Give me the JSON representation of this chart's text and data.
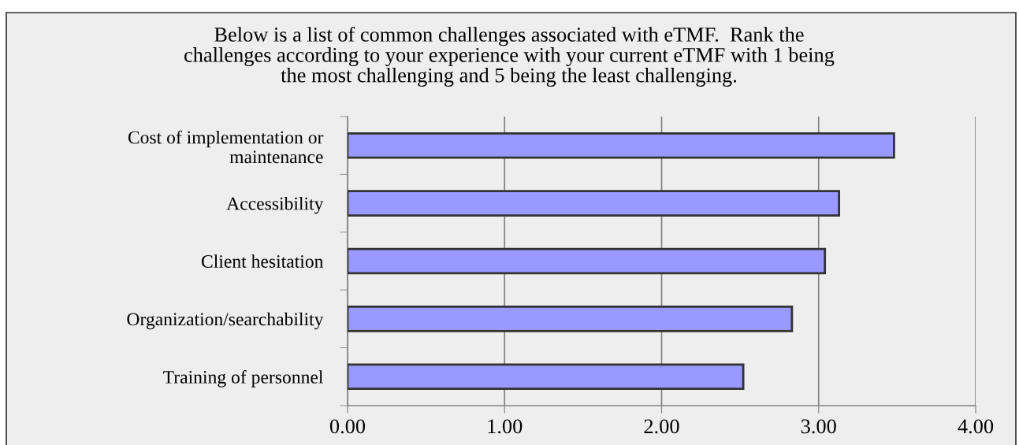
{
  "chart_data": {
    "type": "bar",
    "orientation": "horizontal",
    "title": "Below is a list of common challenges associated with eTMF.  Rank the\nchallenges according to your experience with your current eTMF with 1 being\nthe most challenging and 5 being the least challenging.",
    "categories": [
      "Cost of implementation or\nmaintenance",
      "Accessibility",
      "Client hesitation",
      "Organization/searchability",
      "Training of personnel"
    ],
    "values": [
      3.48,
      3.13,
      3.04,
      2.83,
      2.52
    ],
    "color": "#9999ff",
    "xlim": [
      0,
      4
    ],
    "xticks": [
      {
        "value": 0,
        "label": "0.00"
      },
      {
        "value": 1,
        "label": "1.00"
      },
      {
        "value": 2,
        "label": "2.00"
      },
      {
        "value": 3,
        "label": "3.00"
      },
      {
        "value": 4,
        "label": "4.00"
      }
    ],
    "grid": "x"
  }
}
